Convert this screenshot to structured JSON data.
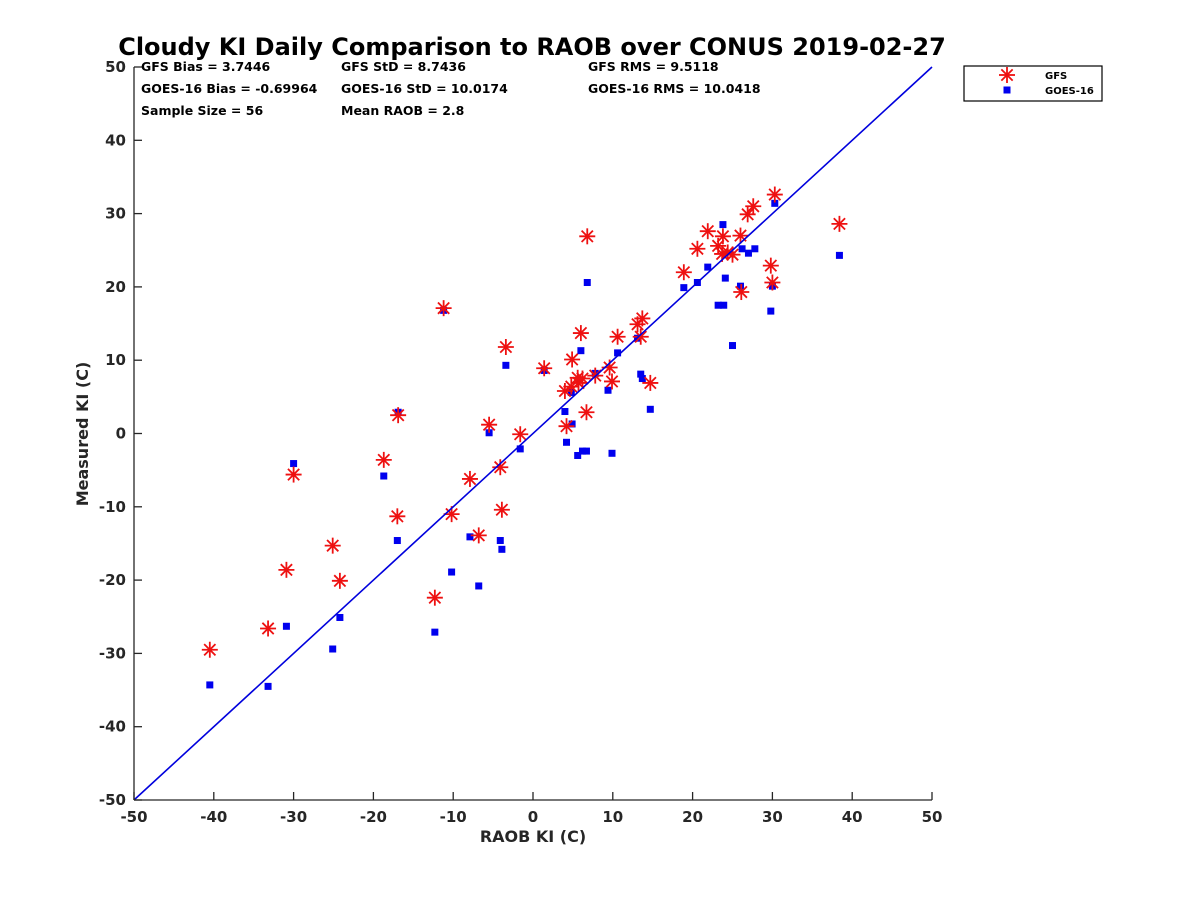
{
  "chart_data": {
    "type": "scatter",
    "title": "Cloudy KI Daily Comparison to RAOB over CONUS 2019-02-27",
    "xlabel": "RAOB KI (C)",
    "ylabel": "Measured KI (C)",
    "xlim": [
      -50,
      50
    ],
    "ylim": [
      -50,
      50
    ],
    "xticks": [
      "-50",
      "-40",
      "-30",
      "-20",
      "-10",
      "0",
      "10",
      "20",
      "30",
      "40",
      "50"
    ],
    "yticks": [
      "50",
      "40",
      "30",
      "20",
      "10",
      "0",
      "-10",
      "-20",
      "-30",
      "-40",
      "-50"
    ],
    "grid": false,
    "legend_position": "top-right, outside plot",
    "reference_line": {
      "type": "one-to-one",
      "color": "#0000dd"
    },
    "stats": [
      "GFS Bias = 3.7446",
      "GFS StD = 8.7436",
      "GFS RMS = 9.5118",
      "GOES-16 Bias = -0.69964",
      "GOES-16 StD = 10.0174",
      "GOES-16 RMS = 10.0418",
      "Sample Size = 56",
      "Mean RAOB = 2.8"
    ],
    "series": [
      {
        "name": "GFS",
        "marker": "asterisk",
        "color": "#ee1111",
        "points": [
          [
            -40.5,
            -29.5
          ],
          [
            -33.2,
            -26.6
          ],
          [
            -30.9,
            -18.6
          ],
          [
            -30,
            -5.6
          ],
          [
            -25.1,
            -15.3
          ],
          [
            -24.2,
            -20.1
          ],
          [
            -18.7,
            -3.6
          ],
          [
            -17,
            -11.3
          ],
          [
            -16.9,
            2.5
          ],
          [
            -12.3,
            -22.4
          ],
          [
            -11.2,
            17.1
          ],
          [
            -10.2,
            -11
          ],
          [
            -7.9,
            -6.2
          ],
          [
            -6.8,
            -13.9
          ],
          [
            -5.5,
            1.2
          ],
          [
            -4.1,
            -4.6
          ],
          [
            -3.9,
            -10.4
          ],
          [
            -3.4,
            11.8
          ],
          [
            -1.6,
            -0.1
          ],
          [
            1.4,
            8.9
          ],
          [
            4,
            5.8
          ],
          [
            4.2,
            1
          ],
          [
            4.8,
            6.4
          ],
          [
            4.9,
            10.1
          ],
          [
            5.6,
            7.6
          ],
          [
            5.7,
            6.9
          ],
          [
            6,
            13.7
          ],
          [
            6.2,
            7.5
          ],
          [
            6.7,
            2.9
          ],
          [
            6.8,
            26.9
          ],
          [
            7.8,
            7.9
          ],
          [
            9.6,
            9
          ],
          [
            9.9,
            7.1
          ],
          [
            10.6,
            13.2
          ],
          [
            13.1,
            14.9
          ],
          [
            13.5,
            13.2
          ],
          [
            13.7,
            15.7
          ],
          [
            14.7,
            6.9
          ],
          [
            18.9,
            22
          ],
          [
            20.6,
            25.2
          ],
          [
            21.9,
            27.6
          ],
          [
            23.2,
            25.6
          ],
          [
            23.7,
            24.5
          ],
          [
            23.8,
            26.9
          ],
          [
            24.4,
            24.7
          ],
          [
            25,
            24.4
          ],
          [
            26,
            27
          ],
          [
            26.1,
            19.3
          ],
          [
            26.9,
            29.9
          ],
          [
            27.6,
            31
          ],
          [
            29.8,
            22.9
          ],
          [
            30,
            20.6
          ],
          [
            30.3,
            32.6
          ],
          [
            38.4,
            28.6
          ]
        ]
      },
      {
        "name": "GOES-16",
        "marker": "square",
        "color": "#0000ee",
        "points": [
          [
            -40.5,
            -34.3
          ],
          [
            -33.2,
            -34.5
          ],
          [
            -30.9,
            -26.3
          ],
          [
            -30,
            -4.1
          ],
          [
            -25.1,
            -29.4
          ],
          [
            -24.2,
            -25.1
          ],
          [
            -18.7,
            -5.8
          ],
          [
            -17,
            -14.6
          ],
          [
            -16.9,
            2.9
          ],
          [
            -12.3,
            -27.1
          ],
          [
            -11.2,
            16.8
          ],
          [
            -10.2,
            -18.9
          ],
          [
            -7.9,
            -14.1
          ],
          [
            -6.8,
            -20.8
          ],
          [
            -5.5,
            0.1
          ],
          [
            -4.1,
            -14.6
          ],
          [
            -3.9,
            -15.8
          ],
          [
            -3.4,
            9.3
          ],
          [
            -1.6,
            -2.1
          ],
          [
            1.4,
            8.6
          ],
          [
            4,
            3
          ],
          [
            4.2,
            -1.2
          ],
          [
            4.8,
            5.6
          ],
          [
            4.9,
            1.3
          ],
          [
            5.6,
            -3
          ],
          [
            6,
            11.3
          ],
          [
            6.2,
            -2.4
          ],
          [
            6.7,
            -2.4
          ],
          [
            6.8,
            20.6
          ],
          [
            7.8,
            8.2
          ],
          [
            9.4,
            5.9
          ],
          [
            9.9,
            -2.7
          ],
          [
            10.6,
            11
          ],
          [
            13.1,
            13
          ],
          [
            13.5,
            8.1
          ],
          [
            13.7,
            7.5
          ],
          [
            14.7,
            3.3
          ],
          [
            18.9,
            19.9
          ],
          [
            20.6,
            20.6
          ],
          [
            21.9,
            22.7
          ],
          [
            23.2,
            17.5
          ],
          [
            23.8,
            28.5
          ],
          [
            23.9,
            17.5
          ],
          [
            24.1,
            21.2
          ],
          [
            25,
            12
          ],
          [
            26,
            20.1
          ],
          [
            26.2,
            25.2
          ],
          [
            27,
            24.6
          ],
          [
            27.8,
            25.2
          ],
          [
            29.8,
            16.7
          ],
          [
            30,
            20.1
          ],
          [
            30.3,
            31.4
          ],
          [
            38.4,
            24.3
          ]
        ]
      }
    ]
  }
}
